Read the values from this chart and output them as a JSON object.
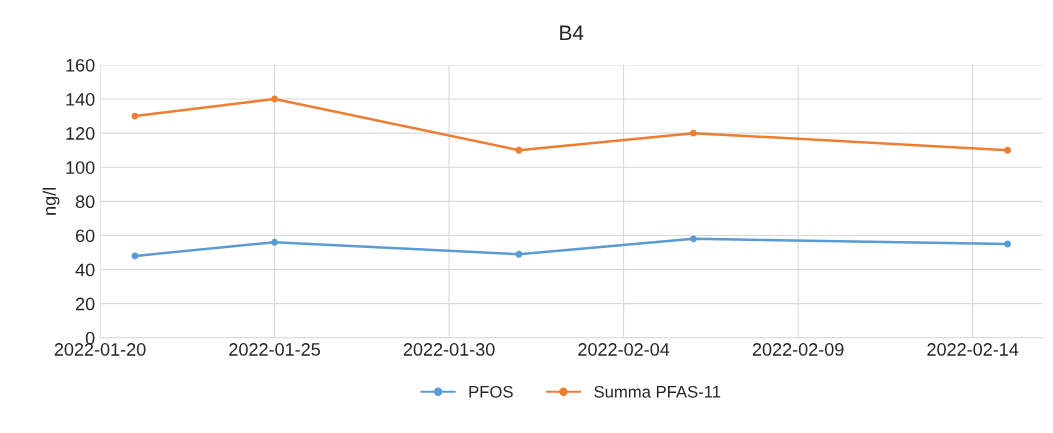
{
  "chart_data": {
    "type": "line",
    "title": "B4",
    "ylabel": "ng/l",
    "x": [
      "2022-01-21",
      "2022-01-25",
      "2022-02-01",
      "2022-02-06",
      "2022-02-15"
    ],
    "series": [
      {
        "name": "PFOS",
        "color": "#5b9bd5",
        "values": [
          48,
          56,
          49,
          58,
          55
        ]
      },
      {
        "name": "Summa PFAS-11",
        "color": "#ed7d31",
        "values": [
          130,
          140,
          110,
          120,
          110
        ]
      }
    ],
    "xlim": [
      "2022-01-20",
      "2022-02-16"
    ],
    "xticks": [
      "2022-01-20",
      "2022-01-25",
      "2022-01-30",
      "2022-02-04",
      "2022-02-09",
      "2022-02-14"
    ],
    "ylim": [
      0,
      160
    ],
    "yticks": [
      0,
      20,
      40,
      60,
      80,
      100,
      120,
      140,
      160
    ],
    "grid": true,
    "legend": "bottom",
    "marker": "circle",
    "line_style": "solid"
  }
}
